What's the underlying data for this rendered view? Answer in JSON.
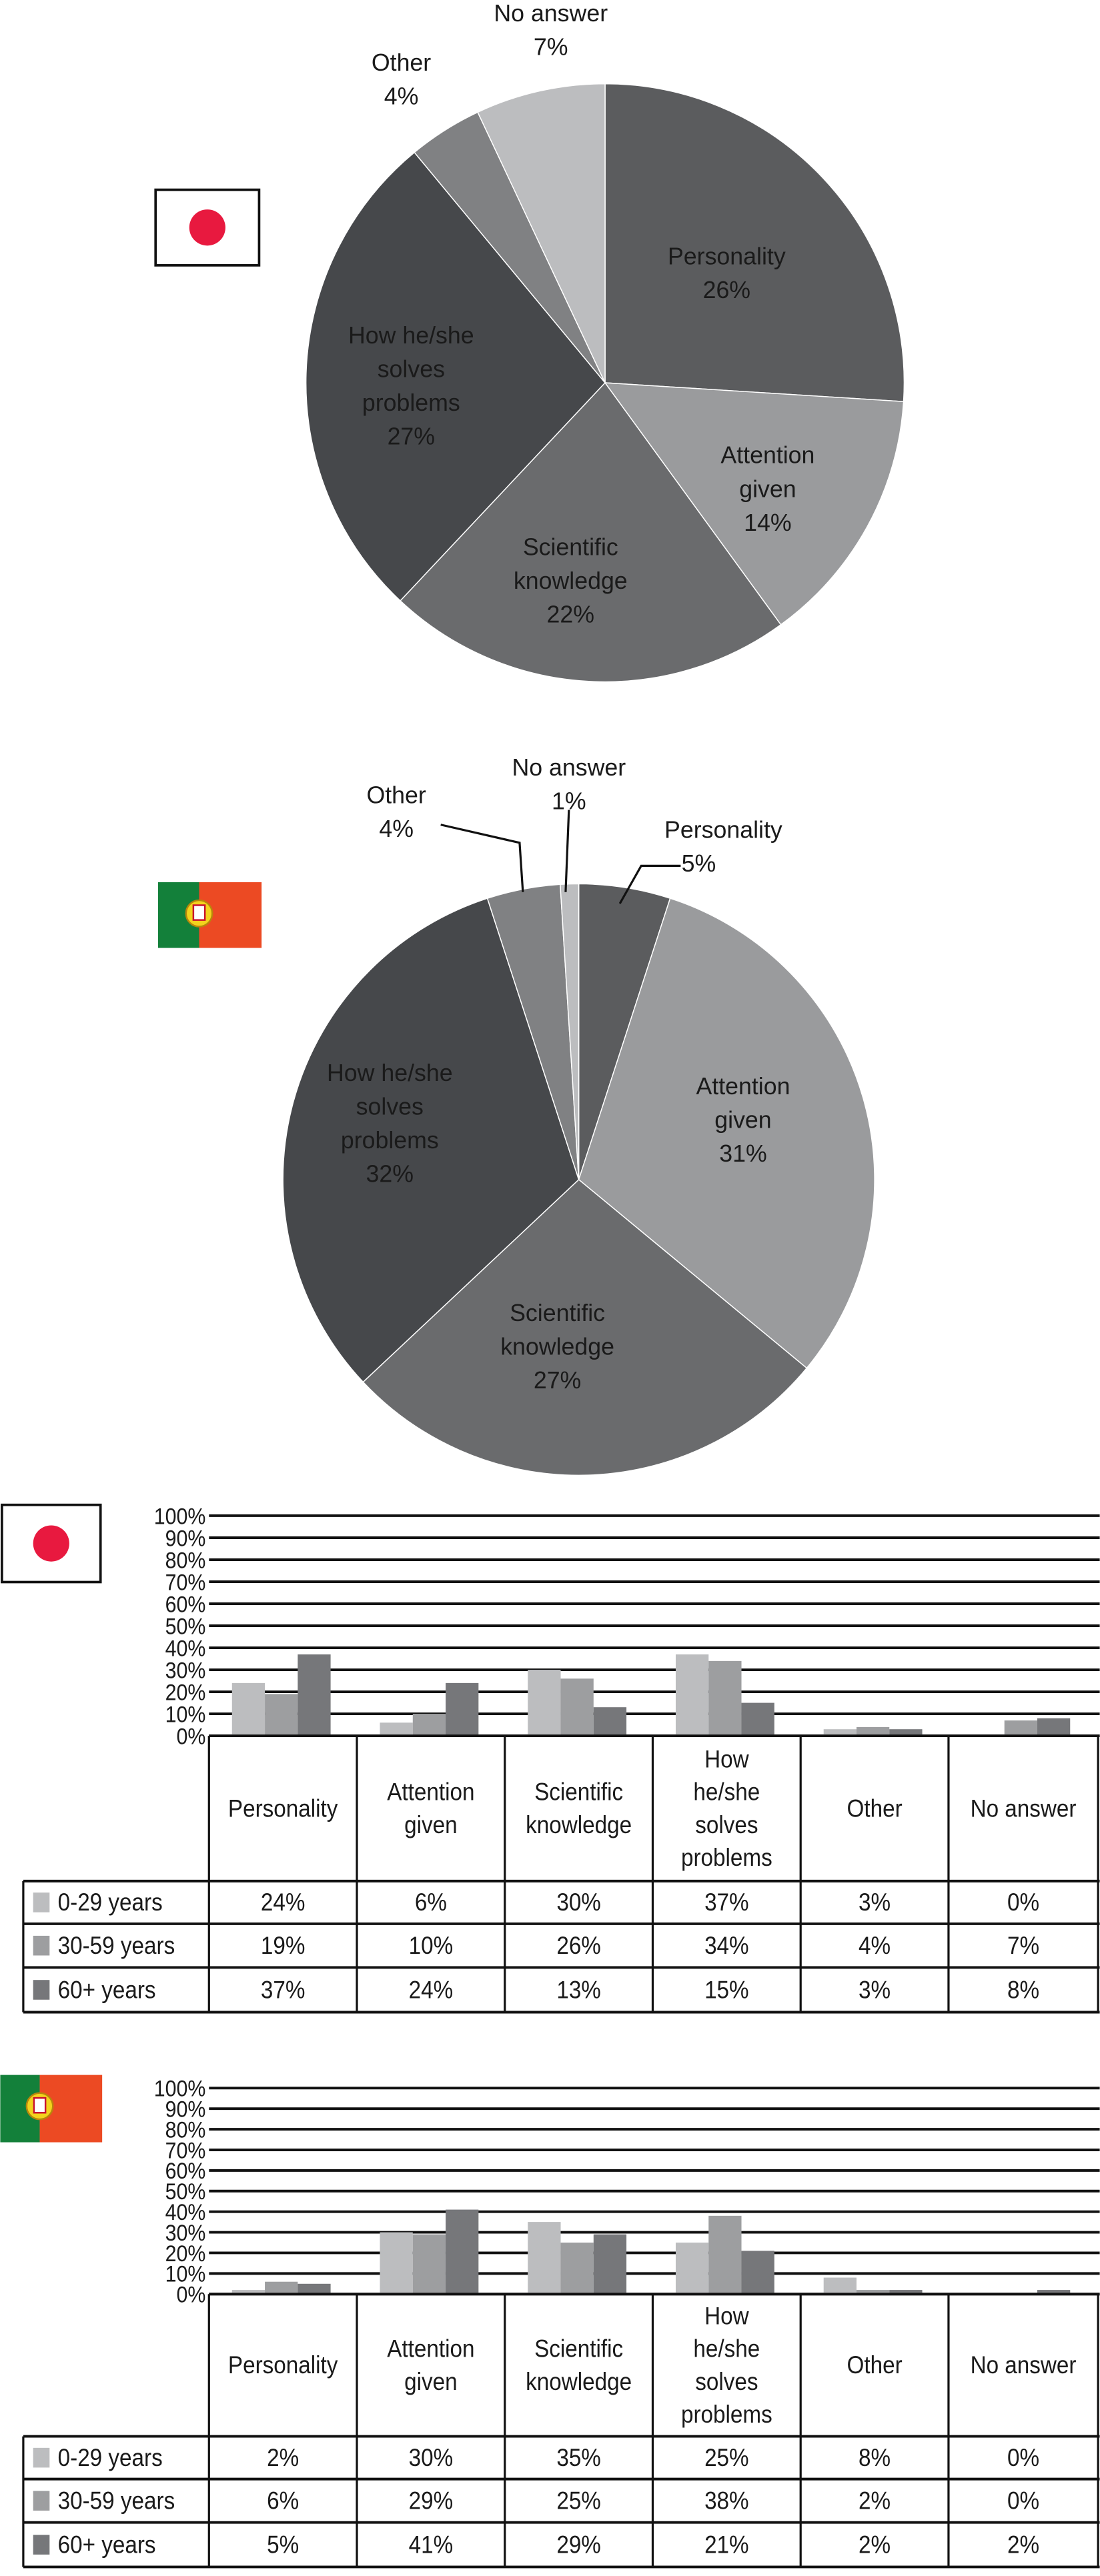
{
  "chart_data": [
    {
      "type": "pie",
      "flag": "japan-flag",
      "categories": [
        "Personality",
        "Attention given",
        "Scientific knowledge",
        "How he/she solves problems",
        "Other",
        "No answer"
      ],
      "values": [
        26,
        14,
        22,
        27,
        4,
        7
      ],
      "colors": [
        "#5b5c5e",
        "#9a9b9d",
        "#6a6b6d",
        "#46484b",
        "#808183",
        "#bcbdbf"
      ]
    },
    {
      "type": "pie",
      "flag": "portugal-flag",
      "categories": [
        "Personality",
        "Attention given",
        "Scientific knowledge",
        "How he/she solves problems",
        "Other",
        "No answer"
      ],
      "values": [
        5,
        31,
        27,
        32,
        4,
        1
      ],
      "colors": [
        "#5b5c5e",
        "#9a9b9d",
        "#6a6b6d",
        "#46484b",
        "#808183",
        "#bcbdbf"
      ]
    },
    {
      "type": "bar",
      "flag": "japan-flag",
      "categories": [
        "Personality",
        "Attention given",
        "Scientific knowledge",
        "How he/she solves problems",
        "Other",
        "No answer"
      ],
      "ylim": [
        0,
        100
      ],
      "yticks": [
        "100%",
        "90%",
        "80%",
        "70%",
        "60%",
        "50%",
        "40%",
        "30%",
        "20%",
        "10%",
        "0%"
      ],
      "grid": true,
      "legend": "table-left",
      "series": [
        {
          "name": "0-29 years",
          "color": "#bcbdbf",
          "values": [
            24,
            6,
            30,
            37,
            3,
            0
          ]
        },
        {
          "name": "30-59 years",
          "color": "#9d9ea0",
          "values": [
            19,
            10,
            26,
            34,
            4,
            7
          ]
        },
        {
          "name": "60+ years",
          "color": "#76777a",
          "values": [
            37,
            24,
            13,
            15,
            3,
            8
          ]
        }
      ]
    },
    {
      "type": "bar",
      "flag": "portugal-flag",
      "categories": [
        "Personality",
        "Attention given",
        "Scientific knowledge",
        "How he/she solves problems",
        "Other",
        "No answer"
      ],
      "ylim": [
        0,
        100
      ],
      "yticks": [
        "100%",
        "90%",
        "80%",
        "70%",
        "60%",
        "50%",
        "40%",
        "30%",
        "20%",
        "10%",
        "0%"
      ],
      "grid": true,
      "legend": "table-left",
      "series": [
        {
          "name": "0-29 years",
          "color": "#bcbdbf",
          "values": [
            2,
            30,
            35,
            25,
            8,
            0
          ]
        },
        {
          "name": "30-59 years",
          "color": "#9d9ea0",
          "values": [
            6,
            29,
            25,
            38,
            2,
            0
          ]
        },
        {
          "name": "60+ years",
          "color": "#76777a",
          "values": [
            5,
            41,
            29,
            21,
            2,
            2
          ]
        }
      ]
    }
  ]
}
